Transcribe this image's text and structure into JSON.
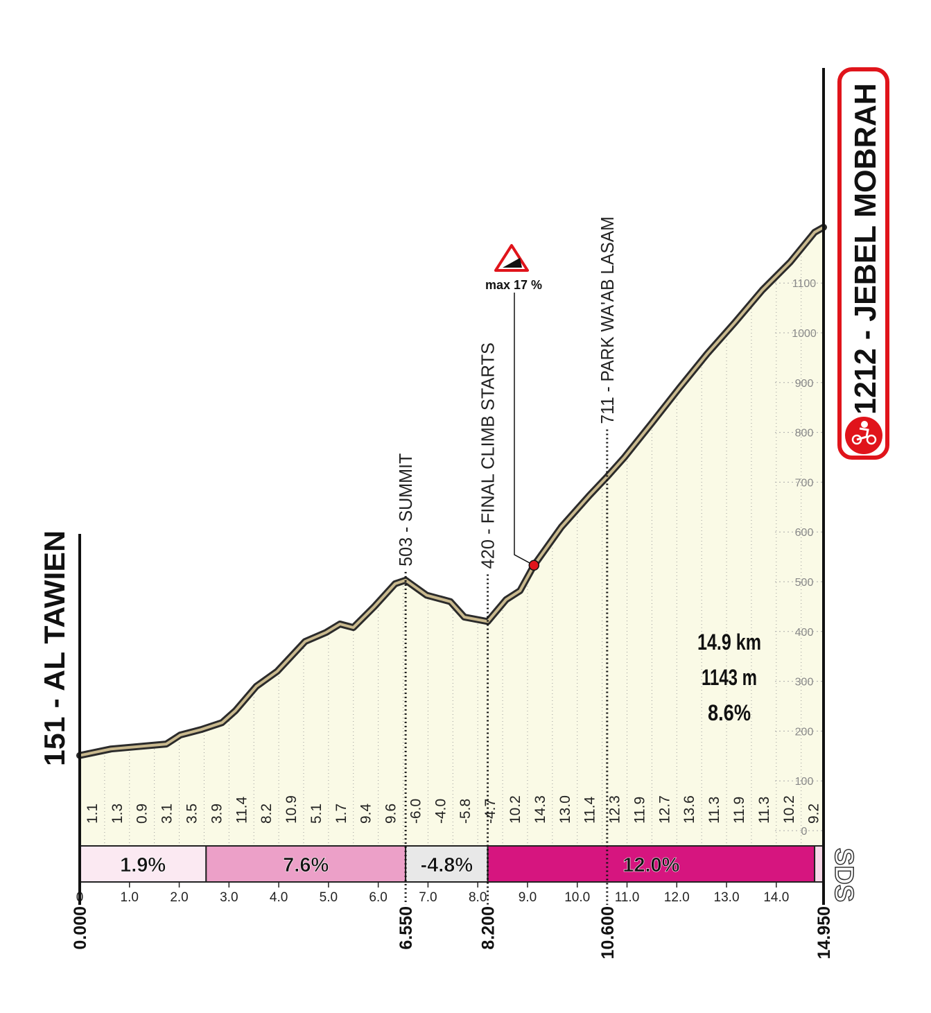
{
  "chart_data": {
    "type": "line",
    "x": [
      0,
      0.63,
      1.18,
      1.74,
      2.02,
      2.44,
      2.86,
      3.13,
      3.55,
      3.97,
      4.53,
      4.95,
      5.23,
      5.5,
      5.92,
      6.34,
      6.55,
      6.97,
      7.45,
      7.73,
      8.2,
      8.57,
      8.85,
      9.13,
      9.68,
      10.24,
      10.6,
      10.94,
      11.5,
      12.05,
      12.61,
      13.17,
      13.72,
      14.28,
      14.77,
      14.95
    ],
    "values": [
      151,
      164,
      169,
      174,
      192,
      203,
      217,
      241,
      290,
      320,
      380,
      398,
      415,
      408,
      450,
      496,
      503,
      473,
      460,
      429,
      420,
      464,
      482,
      533,
      610,
      673,
      711,
      749,
      819,
      889,
      958,
      1021,
      1086,
      1142,
      1202,
      1212
    ],
    "xlim": [
      0,
      14.95
    ],
    "ylim": [
      0,
      1300
    ],
    "yticks": [
      0,
      100,
      200,
      300,
      400,
      500,
      600,
      700,
      800,
      900,
      1000,
      1100
    ],
    "xticks": [
      0,
      {
        "value": 1,
        "label": "1.0"
      },
      {
        "value": 2,
        "label": "2.0"
      },
      {
        "value": 3,
        "label": "3.0"
      },
      {
        "value": 4,
        "label": "4.0"
      },
      {
        "value": 5,
        "label": "5.0"
      },
      {
        "value": 6,
        "label": "6.0"
      },
      {
        "value": 7,
        "label": "7.0"
      },
      {
        "value": 8,
        "label": "8.0"
      },
      {
        "value": 9,
        "label": "9.0"
      },
      {
        "value": 10,
        "label": "10.0"
      },
      {
        "value": 11,
        "label": "11.0"
      },
      {
        "value": 12,
        "label": "12.0"
      },
      {
        "value": 13,
        "label": "13.0"
      },
      {
        "value": 14,
        "label": "14.0"
      }
    ],
    "segment_gradients": [
      "1.1",
      "1.3",
      "0.9",
      "3.1",
      "3.5",
      "3.9",
      "11.4",
      "8.2",
      "10.9",
      "5.1",
      "1.7",
      "9.4",
      "9.6",
      "-6.0",
      "-4.0",
      "-5.8",
      "-4.7",
      "10.2",
      "14.3",
      "13.0",
      "11.4",
      "12.3",
      "11.9",
      "12.7",
      "13.6",
      "11.3",
      "11.9",
      "11.3",
      "10.2",
      "9.2"
    ],
    "gradient_bands": [
      {
        "start": 0,
        "end": 2.54,
        "label": "1.9%",
        "color": "#fbe9f2"
      },
      {
        "start": 2.54,
        "end": 6.55,
        "label": "7.6%",
        "color": "#eca0c8"
      },
      {
        "start": 6.55,
        "end": 8.2,
        "label": "-4.8%",
        "color": "#e8e8e8"
      },
      {
        "start": 8.2,
        "end": 14.77,
        "label": "12.0%",
        "color": "#d6157f"
      },
      {
        "start": 14.77,
        "end": 14.95,
        "color": "#f7d9e8"
      }
    ],
    "start": {
      "km": 0,
      "km_label": "0.000",
      "label": "151 - AL TAWIEN"
    },
    "finish": {
      "km": 14.95,
      "km_label": "14.950",
      "label": "1212 - JEBEL MOBRAH"
    },
    "waypoints": [
      {
        "km": 6.55,
        "km_label": "6.550",
        "elevation": 503,
        "label": "503 - SUMMIT"
      },
      {
        "km": 8.2,
        "km_label": "8.200",
        "elevation": 420,
        "label": "420 - FINAL CLIMB STARTS"
      },
      {
        "km": 10.6,
        "km_label": "10.600",
        "elevation": 711,
        "label": "711 - PARK WA'AB LASAM"
      }
    ],
    "max_gradient": {
      "km": 9.13,
      "elevation": 533,
      "label": "max 17 %"
    },
    "summary": [
      "14.9 km",
      "1143 m",
      "8.6%"
    ],
    "logo": "SDS",
    "line_color": "#c9b98e",
    "fill_color": "#fafae6"
  }
}
